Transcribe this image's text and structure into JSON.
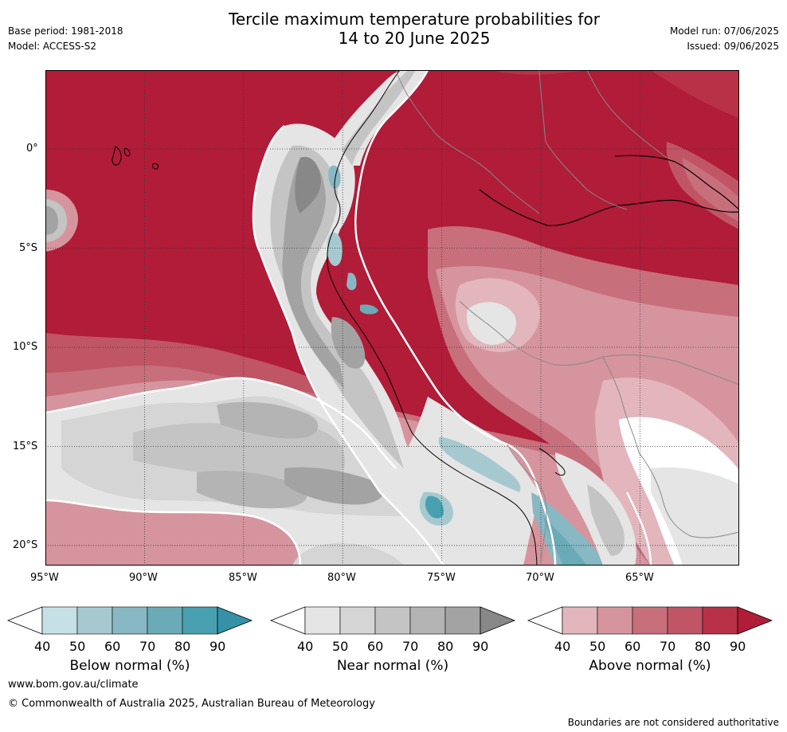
{
  "header": {
    "base_period": "Base period: 1981-2018",
    "model": "Model: ACCESS-S2",
    "title_line1": "Tercile maximum temperature probabilities for",
    "title_line2": "14 to 20 June 2025",
    "model_run": "Model run: 07/06/2025",
    "issued": "Issued: 09/06/2025"
  },
  "map": {
    "lon_labels": [
      "95°W",
      "90°W",
      "85°W",
      "80°W",
      "75°W",
      "70°W",
      "65°W"
    ],
    "lat_labels": [
      "0°",
      "5°S",
      "10°S",
      "15°S",
      "20°S"
    ]
  },
  "colorbars": [
    {
      "label": "Below normal (%)",
      "ticks": [
        "40",
        "50",
        "60",
        "70",
        "80",
        "90"
      ],
      "colors": [
        "#ffffff",
        "#c6e0e5",
        "#a6c9cf",
        "#87b8c3",
        "#6aabb7",
        "#48a0b0",
        "#3592a6"
      ]
    },
    {
      "label": "Near normal (%)",
      "ticks": [
        "40",
        "50",
        "60",
        "70",
        "80",
        "90"
      ],
      "colors": [
        "#ffffff",
        "#e5e5e5",
        "#d5d5d5",
        "#c4c4c4",
        "#b4b4b4",
        "#a3a3a3",
        "#888888"
      ]
    },
    {
      "label": "Above normal (%)",
      "ticks": [
        "40",
        "50",
        "60",
        "70",
        "80",
        "90"
      ],
      "colors": [
        "#ffffff",
        "#e2b6bc",
        "#d6959e",
        "#c86f7c",
        "#c05565",
        "#b83147",
        "#b11c38"
      ]
    }
  ],
  "footer": {
    "url": "www.bom.gov.au/climate",
    "copyright": "© Commonwealth of Australia 2025, Australian Bureau of Meteorology",
    "disclaimer": "Boundaries are not considered authoritative"
  }
}
